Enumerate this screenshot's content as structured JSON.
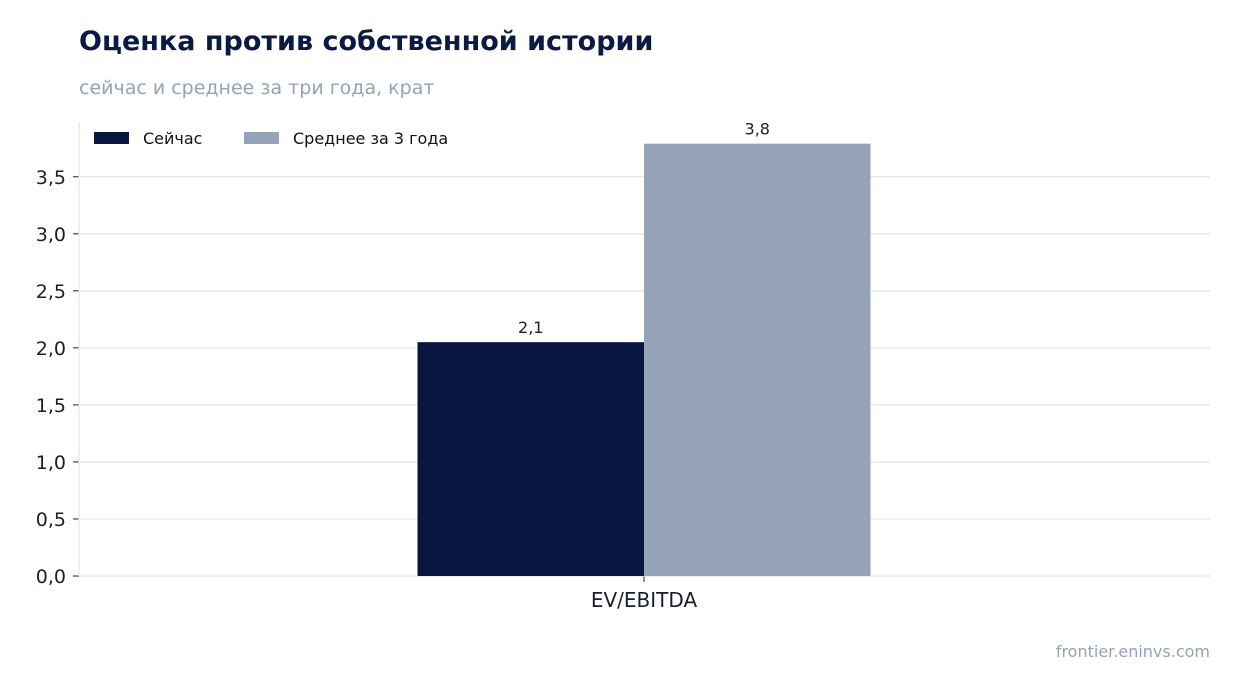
{
  "title": "Оценка против собственной истории",
  "subtitle": "сейчас и среднее за три года, крат",
  "source": "frontier.eninvs.com",
  "chart_data": {
    "type": "bar",
    "categories": [
      "EV/EBITDA"
    ],
    "series": [
      {
        "name": "Сейчас",
        "values": [
          2.05
        ],
        "labels": [
          "2,1"
        ],
        "color": "#081640"
      },
      {
        "name": "Среднее за 3 года",
        "values": [
          3.79
        ],
        "labels": [
          "3,8"
        ],
        "color": "#94a3b8"
      }
    ],
    "yticks": [
      "0,0",
      "0,5",
      "1,0",
      "1,5",
      "2,0",
      "2,5",
      "3,0",
      "3,5"
    ],
    "ytick_values": [
      0,
      0.5,
      1.0,
      1.5,
      2.0,
      2.5,
      3.0,
      3.5
    ],
    "ylim": [
      0,
      3.98
    ],
    "grid": true,
    "legend": "top-left"
  }
}
